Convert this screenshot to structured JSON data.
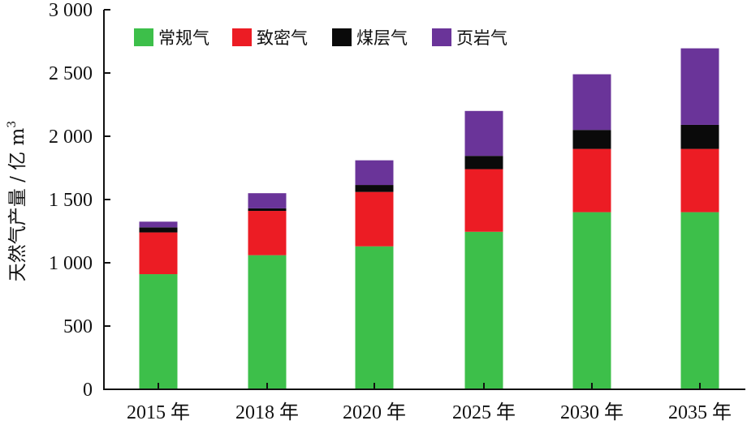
{
  "chart_data": {
    "type": "bar",
    "stacked": true,
    "categories": [
      "2015 年",
      "2018 年",
      "2020 年",
      "2025 年",
      "2030 年",
      "2035 年"
    ],
    "series": [
      {
        "name": "常规气",
        "color": "#3dbf4a",
        "values": [
          910,
          1060,
          1130,
          1245,
          1400,
          1400
        ]
      },
      {
        "name": "致密气",
        "color": "#ec1c24",
        "values": [
          330,
          350,
          430,
          495,
          500,
          500
        ]
      },
      {
        "name": "煤层气",
        "color": "#0a0a0a",
        "values": [
          40,
          20,
          55,
          105,
          150,
          190
        ]
      },
      {
        "name": "页岩气",
        "color": "#6a3499",
        "values": [
          45,
          120,
          195,
          355,
          440,
          605
        ]
      }
    ],
    "ylabel": "天然气产量 / 亿 m",
    "ylabel_superscript": "3",
    "ylim": [
      0,
      3000
    ],
    "yticks": [
      0,
      500,
      1000,
      1500,
      2000,
      2500,
      3000
    ],
    "ytick_labels": [
      "0",
      "500",
      "1 000",
      "1 500",
      "2 000",
      "2 500",
      "3 000"
    ],
    "legend_position": "top-left",
    "grid": false
  }
}
